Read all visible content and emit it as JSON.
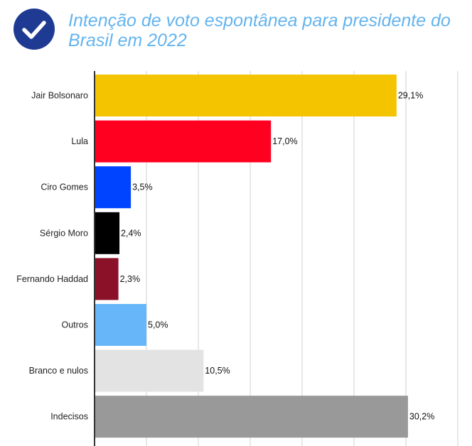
{
  "title": "Intenção de voto espontânea para presidente do Brasil em 2022",
  "badge_icon": "check-icon",
  "colors": {
    "badge": "#1f3a93",
    "title": "#64b4ee"
  },
  "chart_data": {
    "type": "bar",
    "orientation": "horizontal",
    "categories": [
      "Jair Bolsonaro",
      "Lula",
      "Ciro Gomes",
      "Sérgio Moro",
      "Fernando Haddad",
      "Outros",
      "Branco e nulos",
      "Indecisos"
    ],
    "values": [
      29.1,
      17.0,
      3.5,
      2.4,
      2.3,
      5.0,
      10.5,
      30.2
    ],
    "value_labels": [
      "29,1%",
      "17,0%",
      "3,5%",
      "2,4%",
      "2,3%",
      "5,0%",
      "10,5%",
      "30,2%"
    ],
    "colors": [
      "#f5c400",
      "#ff0020",
      "#0044ff",
      "#000000",
      "#8b1128",
      "#66b6f9",
      "#e3e3e3",
      "#999999"
    ],
    "xlim": [
      0,
      35
    ],
    "grid": true,
    "grid_interval": 5,
    "xlabel": "",
    "ylabel": ""
  }
}
